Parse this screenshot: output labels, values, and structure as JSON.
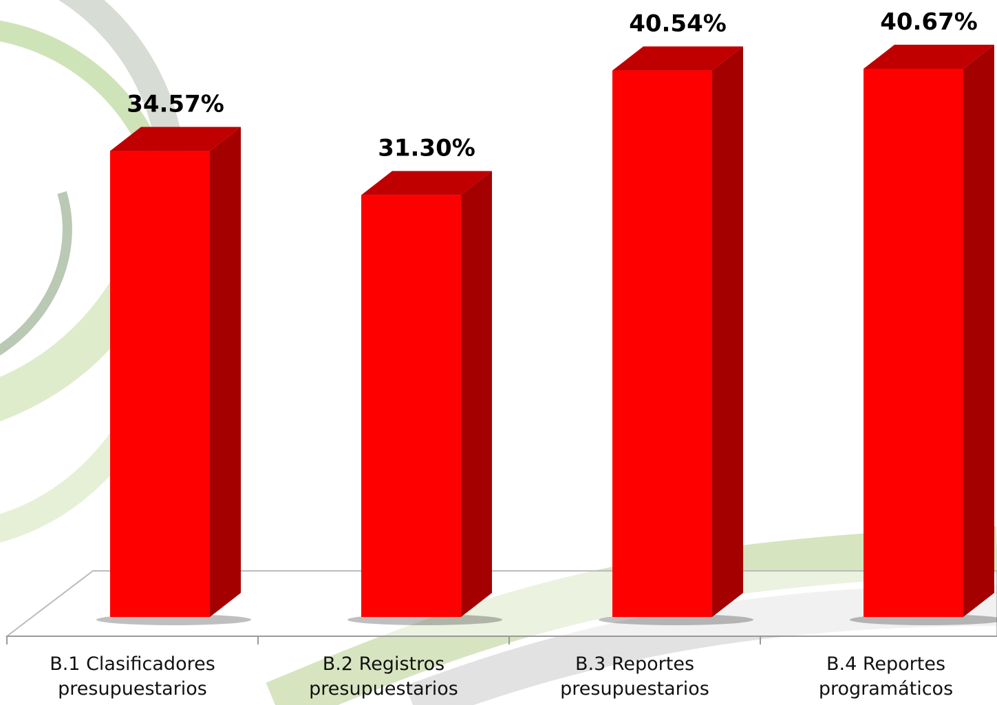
{
  "chart_data": {
    "type": "bar3d",
    "categories": [
      "B.1 Clasificadores presupuestarios",
      "B.2 Registros presupuestarios",
      "B.3 Reportes presupuestarios",
      "B.4 Reportes programáticos"
    ],
    "values": [
      34.57,
      31.3,
      40.54,
      40.67
    ],
    "value_labels": [
      "34.57%",
      "31.30%",
      "40.54%",
      "40.67%"
    ],
    "color": "#ff0000"
  }
}
